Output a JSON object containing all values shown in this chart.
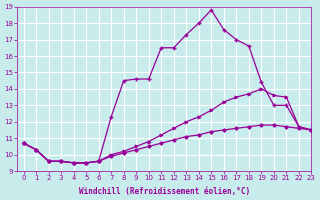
{
  "xlabel": "Windchill (Refroidissement éolien,°C)",
  "xlim": [
    -0.5,
    23
  ],
  "ylim": [
    9,
    19
  ],
  "xticks": [
    0,
    1,
    2,
    3,
    4,
    5,
    6,
    7,
    8,
    9,
    10,
    11,
    12,
    13,
    14,
    15,
    16,
    17,
    18,
    19,
    20,
    21,
    22,
    23
  ],
  "yticks": [
    9,
    10,
    11,
    12,
    13,
    14,
    15,
    16,
    17,
    18,
    19
  ],
  "bg_color": "#c8ecec",
  "line_color": "#990099",
  "grid_color": "#ffffff",
  "line1_x": [
    0,
    1,
    2,
    3,
    4,
    5,
    6,
    7,
    8,
    9,
    10,
    11,
    12,
    13,
    14,
    15,
    16,
    17,
    18,
    19,
    20,
    21,
    22,
    23
  ],
  "line1_y": [
    10.7,
    10.3,
    9.6,
    9.6,
    9.5,
    9.5,
    9.6,
    12.3,
    14.5,
    14.6,
    14.6,
    16.5,
    16.5,
    17.3,
    18.0,
    18.8,
    17.6,
    17.0,
    16.6,
    14.4,
    13.0,
    13.0,
    11.7,
    11.5
  ],
  "line2_x": [
    0,
    1,
    2,
    3,
    4,
    5,
    6,
    7,
    8,
    9,
    10,
    11,
    12,
    13,
    14,
    15,
    16,
    17,
    18,
    19,
    20,
    21,
    22,
    23
  ],
  "line2_y": [
    10.7,
    10.3,
    9.6,
    9.6,
    9.5,
    9.5,
    9.6,
    10.0,
    10.2,
    10.5,
    10.8,
    11.2,
    11.6,
    12.0,
    12.3,
    12.7,
    13.2,
    13.5,
    13.7,
    14.0,
    13.6,
    13.5,
    11.7,
    11.5
  ],
  "line3_x": [
    0,
    1,
    2,
    3,
    4,
    5,
    6,
    7,
    8,
    9,
    10,
    11,
    12,
    13,
    14,
    15,
    16,
    17,
    18,
    19,
    20,
    21,
    22,
    23
  ],
  "line3_y": [
    10.7,
    10.3,
    9.6,
    9.6,
    9.5,
    9.5,
    9.6,
    9.9,
    10.1,
    10.3,
    10.5,
    10.7,
    10.9,
    11.1,
    11.2,
    11.4,
    11.5,
    11.6,
    11.7,
    11.8,
    11.8,
    11.7,
    11.6,
    11.5
  ]
}
